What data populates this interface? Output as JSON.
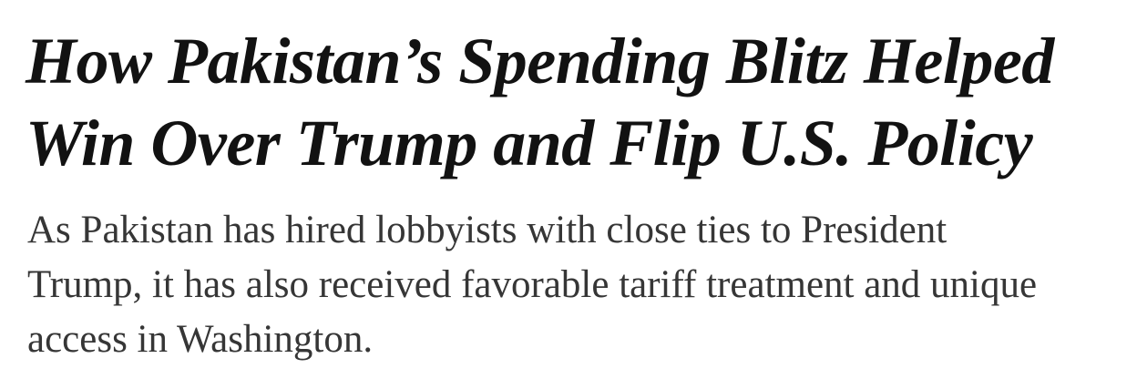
{
  "headline": [
    "How Pakistan’s Spending Blitz Helped",
    "Win Over Trump and Flip U.S. Policy"
  ],
  "summary": [
    "As Pakistan has hired lobbyists with close ties to President",
    "Trump, it has also received favorable tariff treatment and unique",
    "access in Washington."
  ]
}
